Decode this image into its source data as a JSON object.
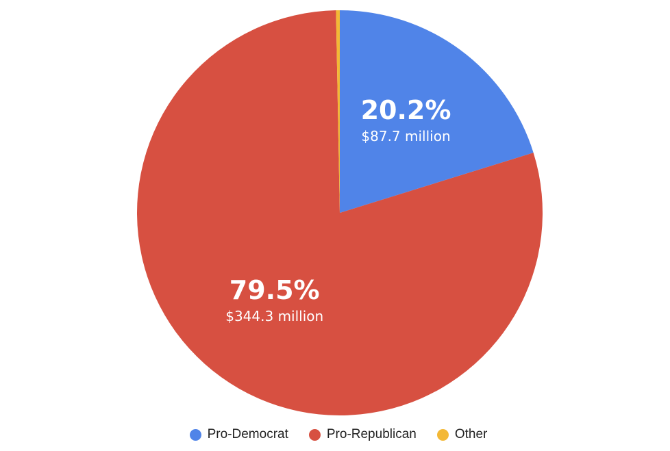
{
  "chart_data": {
    "type": "pie",
    "title": "",
    "slices": [
      {
        "name": "Pro-Democrat",
        "percent": 20.2,
        "percent_label": "20.2%",
        "amount_label": "$87.7 million",
        "color": "#5084E8"
      },
      {
        "name": "Pro-Republican",
        "percent": 79.5,
        "percent_label": "79.5%",
        "amount_label": "$344.3 million",
        "color": "#D75041"
      },
      {
        "name": "Other",
        "percent": 0.3,
        "percent_label": "",
        "amount_label": "",
        "color": "#F3B836"
      }
    ],
    "legend_position": "bottom"
  }
}
